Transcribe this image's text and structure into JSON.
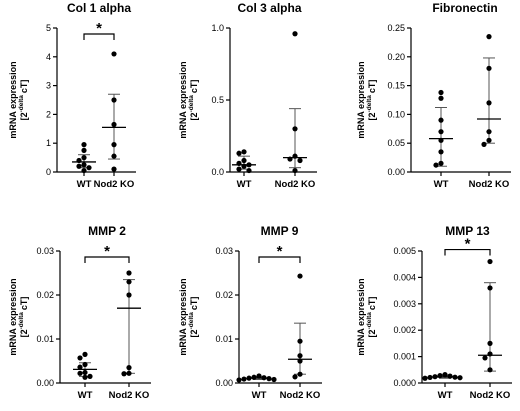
{
  "chart_data": [
    {
      "type": "scatter",
      "title": "Col 1 alpha",
      "ylabel": {
        "main": "mRNA expression",
        "prefix": "[2",
        "sup": "-delta",
        "suffix": "cT]"
      },
      "ylim": [
        0,
        5
      ],
      "yticks": [
        "0",
        "1",
        "2",
        "3",
        "4",
        "5"
      ],
      "categories": [
        "WT",
        "Nod2 KO"
      ],
      "significance": "*",
      "series": [
        {
          "points": [
            0.95,
            0.75,
            0.5,
            0.4,
            0.25,
            0.2,
            0.15,
            0.05
          ],
          "mean": 0.35,
          "error": [
            0.15,
            0.6
          ]
        },
        {
          "points": [
            4.1,
            2.5,
            1.65,
            0.95,
            0.55,
            0.1
          ],
          "mean": 1.55,
          "error": [
            0.45,
            2.7
          ]
        }
      ]
    },
    {
      "type": "scatter",
      "title": "Col 3 alpha",
      "ylabel": {
        "main": "mRNA expression",
        "prefix": "[2",
        "sup": "-delta",
        "suffix": "cT]"
      },
      "ylim": [
        0,
        1
      ],
      "yticks": [
        "0.0",
        "0.5",
        "1.0"
      ],
      "categories": [
        "WT",
        "Nod2 KO"
      ],
      "significance": "",
      "series": [
        {
          "points": [
            0.14,
            0.13,
            0.08,
            0.06,
            0.05,
            0.04,
            0.02,
            0.01
          ],
          "mean": 0.05,
          "error": [
            0.02,
            0.11
          ]
        },
        {
          "points": [
            0.96,
            0.3,
            0.11,
            0.09,
            0.08,
            0.01
          ],
          "mean": 0.1,
          "error": [
            0.03,
            0.44
          ]
        }
      ]
    },
    {
      "type": "scatter",
      "title": "Fibronectin",
      "ylabel": {
        "main": "mRNA expression",
        "prefix": "[2",
        "sup": "-delta",
        "suffix": "cT]"
      },
      "ylim": [
        0,
        0.25
      ],
      "yticks": [
        "0.00",
        "0.05",
        "0.10",
        "0.15",
        "0.20",
        "0.25"
      ],
      "categories": [
        "WT",
        "Nod2 KO"
      ],
      "significance": "",
      "series": [
        {
          "points": [
            0.138,
            0.128,
            0.09,
            0.07,
            0.055,
            0.035,
            0.015,
            0.012
          ],
          "mean": 0.058,
          "error": [
            0.01,
            0.112
          ]
        },
        {
          "points": [
            0.235,
            0.18,
            0.12,
            0.07,
            0.055,
            0.048
          ],
          "mean": 0.092,
          "error": [
            0.05,
            0.198
          ]
        }
      ]
    },
    {
      "type": "scatter",
      "title": "MMP 2",
      "ylabel": {
        "main": "mRNA expression",
        "prefix": "[2",
        "sup": "-delta",
        "suffix": "cT]"
      },
      "ylim": [
        0,
        0.03
      ],
      "yticks": [
        "0.00",
        "0.01",
        "0.02",
        "0.03"
      ],
      "categories": [
        "WT",
        "Nod2 KO"
      ],
      "significance": "*",
      "series": [
        {
          "points": [
            0.0065,
            0.0057,
            0.0042,
            0.0036,
            0.0024,
            0.0022,
            0.0015,
            0.0013
          ],
          "mean": 0.0031,
          "error": [
            0.0015,
            0.0046
          ]
        },
        {
          "points": [
            0.025,
            0.023,
            0.02,
            0.0035,
            0.0022,
            0.0021
          ],
          "mean": 0.017,
          "error": [
            0.0022,
            0.0235
          ]
        }
      ]
    },
    {
      "type": "scatter",
      "title": "MMP 9",
      "ylabel": {
        "main": "mRNA expression",
        "prefix": "[2",
        "sup": "-delta",
        "suffix": "cT]"
      },
      "ylim": [
        0,
        0.03
      ],
      "yticks": [
        "0.00",
        "0.01",
        "0.02",
        "0.03"
      ],
      "categories": [
        "WT",
        "Nod2 KO"
      ],
      "significance": "*",
      "series": [
        {
          "points": [
            0.0016,
            0.0013,
            0.0012,
            0.0011,
            0.001,
            0.0009,
            0.0008,
            0.0007
          ],
          "mean": 0.0011,
          "error": [
            0.0008,
            0.0014
          ]
        },
        {
          "points": [
            0.0243,
            0.0095,
            0.0062,
            0.005,
            0.002,
            0.0014
          ],
          "mean": 0.0054,
          "error": [
            0.002,
            0.0136
          ]
        }
      ]
    },
    {
      "type": "scatter",
      "title": "MMP 13",
      "ylabel": {
        "main": "mRNA expression",
        "prefix": "[2",
        "sup": "-delta",
        "suffix": "cT]"
      },
      "ylim": [
        0,
        0.005
      ],
      "yticks": [
        "0.000",
        "0.001",
        "0.002",
        "0.003",
        "0.004",
        "0.005"
      ],
      "categories": [
        "WT",
        "Nod2 KO"
      ],
      "significance": "*",
      "series": [
        {
          "points": [
            0.00032,
            0.00028,
            0.00026,
            0.00024,
            0.00022,
            0.00021,
            0.0002,
            0.00018
          ],
          "mean": 0.00023,
          "error": [
            0.00018,
            0.0003
          ]
        },
        {
          "points": [
            0.0046,
            0.0036,
            0.0015,
            0.0011,
            0.00095,
            0.0005
          ],
          "mean": 0.00105,
          "error": [
            0.00045,
            0.0038
          ]
        }
      ]
    }
  ]
}
